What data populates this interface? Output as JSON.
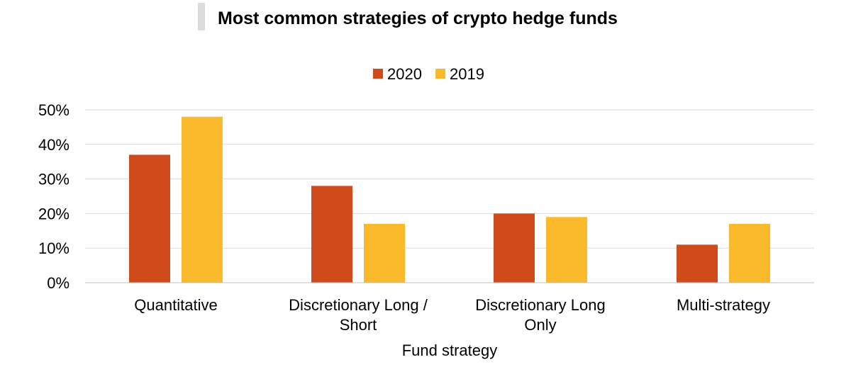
{
  "chart_data": {
    "type": "bar",
    "title": "Most common strategies of crypto hedge funds",
    "xlabel": "Fund strategy",
    "ylabel": "",
    "categories": [
      [
        "Quantitative"
      ],
      [
        "Discretionary Long /",
        "Short"
      ],
      [
        "Discretionary Long",
        "Only"
      ],
      [
        "Multi-strategy"
      ]
    ],
    "series": [
      {
        "name": "2020",
        "color": "#cf4b1c",
        "values": [
          37,
          28,
          20,
          11
        ]
      },
      {
        "name": "2019",
        "color": "#fbb92c",
        "values": [
          48,
          17,
          19,
          17
        ]
      }
    ],
    "ylim": [
      0,
      50
    ],
    "yticks": [
      0,
      10,
      20,
      30,
      40,
      50
    ],
    "ytick_labels": [
      "0%",
      "10%",
      "20%",
      "30%",
      "40%",
      "50%"
    ],
    "grid": true,
    "legend_position": "top-center"
  }
}
